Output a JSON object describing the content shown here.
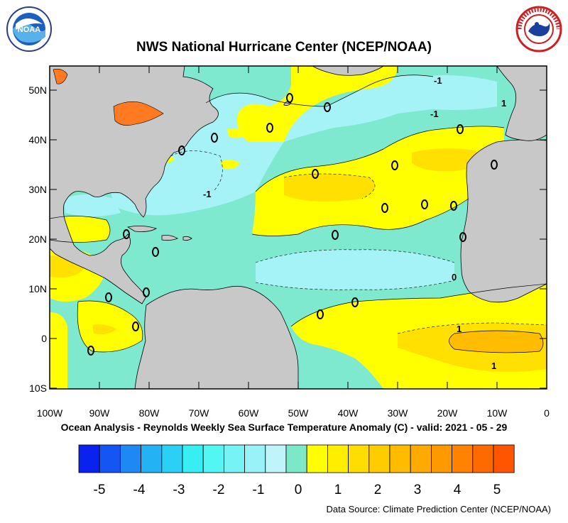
{
  "title": "NWS National Hurricane Center (NCEP/NOAA)",
  "subtitle": "Ocean Analysis - Reynolds Weekly Sea Surface Temperature Anomaly (C) - valid: 2021 - 05 - 29",
  "source": "Data Source: Climate Prediction Center (NCEP/NOAA)",
  "logos": {
    "left": {
      "text": "NOAA",
      "ring_text": "U.S. DEPARTMENT OF COMMERCE"
    },
    "right": {
      "ring_text": "NATIONAL WEATHER SERVICE"
    }
  },
  "map": {
    "lat_labels": [
      "50N",
      "40N",
      "30N",
      "20N",
      "10N",
      "0",
      "10S"
    ],
    "lon_labels": [
      "100W",
      "90W",
      "80W",
      "70W",
      "60W",
      "50W",
      "40W",
      "30W",
      "20W",
      "10W",
      "0"
    ],
    "contour_labels": [
      "-1",
      "-1",
      "-1",
      "1",
      "1",
      "1",
      "0"
    ]
  },
  "colorbar": {
    "tick_labels": [
      "-5",
      "-4",
      "-3",
      "-2",
      "-1",
      "0",
      "1",
      "2",
      "3",
      "4",
      "5"
    ],
    "colors": [
      "#0a22ee",
      "#1455f3",
      "#1e88f5",
      "#23b3f5",
      "#2ad0f5",
      "#37eef2",
      "#52f6f2",
      "#76f3f4",
      "#98f2f7",
      "#bff5fa",
      "#7de8c8",
      "#ffff00",
      "#ffee00",
      "#ffdd00",
      "#ffcc00",
      "#ffbb00",
      "#ffaa00",
      "#ff9900",
      "#ff8200",
      "#ff6a00",
      "#ff5500"
    ]
  },
  "map_colors": {
    "land": "#c8c8c8",
    "neg1": "#7fe9cf",
    "neg2": "#a6f3f7",
    "pos1": "#ffff00",
    "pos2": "#ffe000",
    "pos3": "#ffbc00",
    "lakes": "#ff7a20"
  }
}
